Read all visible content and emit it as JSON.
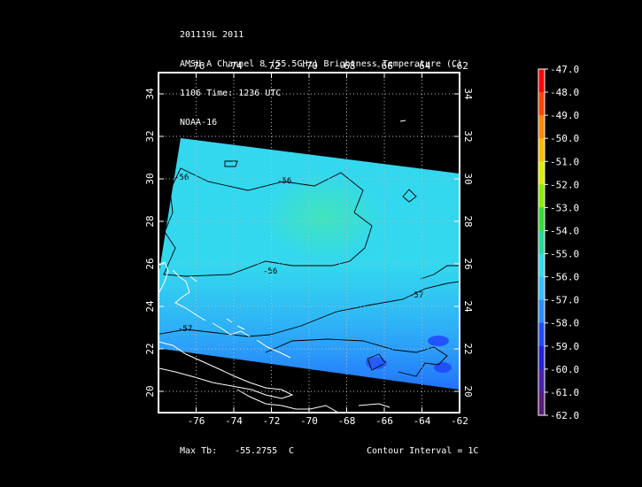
{
  "header": {
    "line1": "201119L 2011",
    "line2": "AMSU-A Channel 8 (55.5GHz) Brightness Temperature (C)",
    "line3": "1106 Time: 1236 UTC",
    "line4": "NOAA-16"
  },
  "map": {
    "lon_ticks": [
      "-76",
      "-74",
      "-72",
      "-70",
      "-68",
      "-66",
      "-64",
      "-62"
    ],
    "lat_ticks": [
      "20",
      "22",
      "24",
      "26",
      "28",
      "30",
      "32",
      "34"
    ],
    "lon_range": [
      -78,
      -62
    ],
    "lat_range": [
      19,
      35
    ],
    "grid": true,
    "swath_color": "#33d7ee",
    "contours": [
      {
        "label": "-56"
      },
      {
        "label": "-56"
      },
      {
        "label": "-56"
      },
      {
        "label": "-57"
      },
      {
        "label": "-57"
      }
    ]
  },
  "colorbar": {
    "labels": [
      "-47.0",
      "-48.0",
      "-49.0",
      "-50.0",
      "-51.0",
      "-52.0",
      "-53.0",
      "-54.0",
      "-55.0",
      "-56.0",
      "-57.0",
      "-58.0",
      "-59.0",
      "-60.0",
      "-61.0",
      "-62.0"
    ],
    "colors": [
      "#ff0000",
      "#ff4400",
      "#ff8800",
      "#ffbb00",
      "#ddee00",
      "#88ee00",
      "#33dd33",
      "#22dd99",
      "#33ddee",
      "#33c0ff",
      "#2a8cff",
      "#1e4dff",
      "#2020dd",
      "#4a1fb0",
      "#5a1a80",
      "#300040"
    ]
  },
  "footer": {
    "max_tb_label": "Max Tb:",
    "max_tb_value": "-55.2755",
    "max_tb_unit": "C",
    "contour_interval": "Contour Interval = 1C"
  }
}
